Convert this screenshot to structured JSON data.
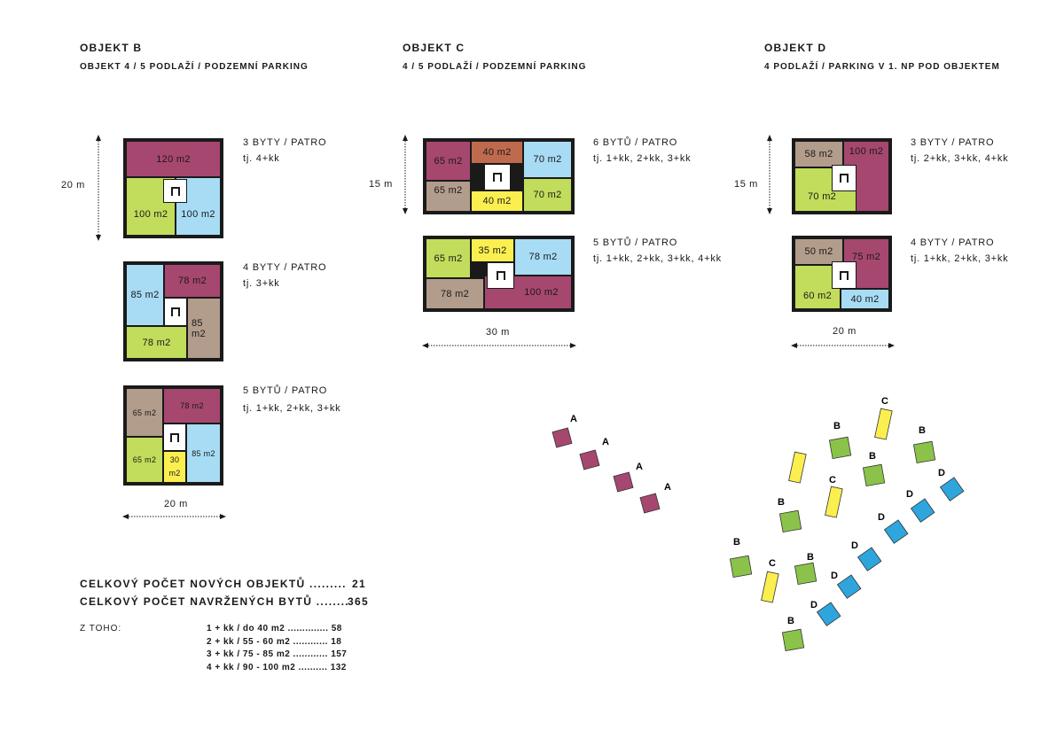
{
  "colors": {
    "purple": "#a6476f",
    "green": "#c2dd5b",
    "blue": "#a7dcf4",
    "taupe": "#b29c8c",
    "yellow": "#fbef4f",
    "brick": "#c06a4d",
    "site_blue": "#2ea6dd",
    "site_green": "#8bc34a"
  },
  "objekt_b": {
    "title": "OBJEKT B",
    "subtitle": "OBJEKT 4 / 5 PODLAŽÍ / PODZEMNÍ PARKING",
    "height_dim": "20 m",
    "width_dim": "20 m",
    "plans": [
      {
        "desc": "3 BYTY / PATRO",
        "types": "tj. 4+kk",
        "rooms": [
          "120 m2",
          "100 m2",
          "100 m2"
        ]
      },
      {
        "desc": "4 BYTY / PATRO",
        "types": "tj. 3+kk",
        "rooms": [
          "85 m2",
          "78 m2",
          "85 m2",
          "78 m2"
        ]
      },
      {
        "desc": "5 BYTŮ / PATRO",
        "types": "tj. 1+kk, 2+kk, 3+kk",
        "rooms": [
          "65 m2",
          "78 m2",
          "65 m2",
          "30",
          "m2",
          "85 m2"
        ]
      }
    ]
  },
  "objekt_c": {
    "title": "OBJEKT C",
    "subtitle": "4 / 5 PODLAŽÍ / PODZEMNÍ PARKING",
    "height_dim": "15 m",
    "width_dim": "30 m",
    "plans": [
      {
        "desc": "6 BYTŮ / PATRO",
        "types": "tj. 1+kk, 2+kk, 3+kk",
        "rooms": [
          "65 m2",
          "40 m2",
          "70 m2",
          "65 m2",
          "40 m2",
          "70 m2"
        ]
      },
      {
        "desc": "5 BYTŮ / PATRO",
        "types": "tj. 1+kk, 2+kk, 3+kk, 4+kk",
        "rooms": [
          "65 m2",
          "35 m2",
          "78 m2",
          "78 m2",
          "100 m2"
        ]
      }
    ]
  },
  "objekt_d": {
    "title": "OBJEKT D",
    "subtitle": "4 PODLAŽÍ / PARKING V 1. NP POD OBJEKTEM",
    "height_dim": "15 m",
    "width_dim": "20 m",
    "plans": [
      {
        "desc": "3 BYTY / PATRO",
        "types": "tj. 2+kk, 3+kk, 4+kk",
        "rooms": [
          "58 m2",
          "100 m2",
          "70 m2"
        ]
      },
      {
        "desc": "4 BYTY / PATRO",
        "types": "tj. 1+kk, 2+kk, 3+kk",
        "rooms": [
          "50 m2",
          "75 m2",
          "60 m2",
          "40 m2"
        ]
      }
    ]
  },
  "totals": {
    "objects_label": "CELKOVÝ POČET NOVÝCH OBJEKTŮ .........",
    "objects_value": "21",
    "flats_label": "CELKOVÝ POČET NAVRŽENÝCH BYTŮ ........",
    "flats_value": "365",
    "breakdown_label": "Z TOHO:",
    "breakdown": [
      {
        "label": "1 + kk / do 40 m2 ..............",
        "value": "58"
      },
      {
        "label": "2 + kk / 55 - 60 m2 ............",
        "value": "18"
      },
      {
        "label": "3 + kk / 75 - 85 m2 ............",
        "value": "157"
      },
      {
        "label": "4 + kk / 90 - 100 m2 ..........",
        "value": "132"
      }
    ]
  },
  "site": {
    "a_label": "A",
    "b_label": "B",
    "c_label": "C",
    "d_label": "D"
  }
}
